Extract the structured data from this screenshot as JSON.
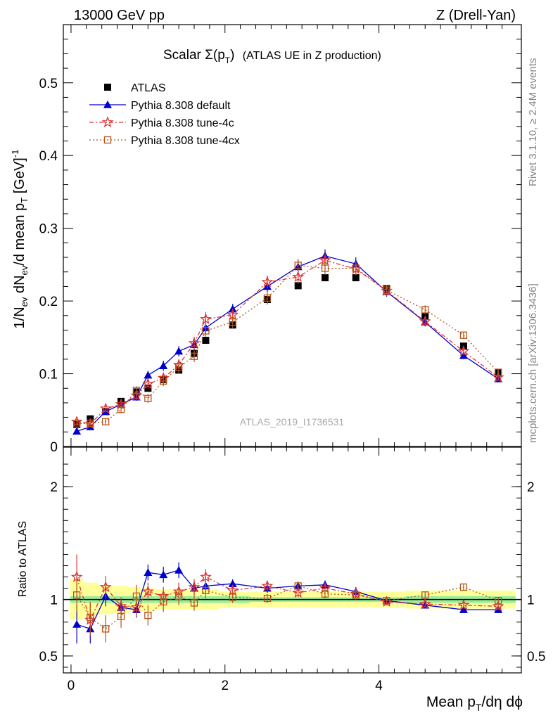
{
  "header": {
    "left": "13000 GeV pp",
    "right": "Z (Drell-Yan)"
  },
  "side_labels": {
    "rivet": "Rivet 3.1.10, ≥ 2.4M events",
    "mcplots": "mcplots.cern.ch [arXiv:1306.3436]"
  },
  "watermark": "ATLAS_2019_I1736531",
  "chart_data": {
    "type": "scatter",
    "title_main": "Scalar Σ(p",
    "title_sub": "T",
    "title_close": ")",
    "title_suffix": "(ATLAS UE in Z production)",
    "xlabel": "Mean p_T/dη dϕ",
    "ylabel": "1/N_ev dN_ev/d mean p_T [GeV]^-1",
    "ratio_ylabel": "Ratio to ATLAS",
    "xlim": [
      -0.1,
      5.85
    ],
    "ylim": [
      0,
      0.58
    ],
    "ratio_ylim": [
      0.35,
      2.35
    ],
    "x_ticks": [
      "0",
      "2",
      "4"
    ],
    "y_ticks": [
      "0",
      "0.1",
      "0.2",
      "0.3",
      "0.4",
      "0.5"
    ],
    "ratio_ticks": [
      "0.5",
      "1",
      "2"
    ],
    "x": [
      0.075,
      0.25,
      0.45,
      0.65,
      0.85,
      1.0,
      1.2,
      1.4,
      1.6,
      1.75,
      2.1,
      2.55,
      2.95,
      3.3,
      3.7,
      4.1,
      4.6,
      5.1,
      5.55
    ],
    "data": {
      "name": "ATLAS",
      "color": "#000000",
      "values": [
        0.03,
        0.038,
        0.048,
        0.062,
        0.075,
        0.08,
        0.092,
        0.105,
        0.128,
        0.146,
        0.167,
        0.202,
        0.221,
        0.232,
        0.232,
        0.217,
        0.179,
        0.138,
        0.101
      ],
      "ratio_stat": [
        0.03,
        0.03,
        0.03,
        0.03,
        0.03,
        0.03,
        0.03,
        0.03,
        0.03,
        0.03,
        0.03,
        0.02,
        0.02,
        0.02,
        0.02,
        0.02,
        0.03,
        0.03,
        0.03
      ],
      "ratio_tot": [
        0.18,
        0.15,
        0.13,
        0.12,
        0.11,
        0.1,
        0.09,
        0.09,
        0.09,
        0.09,
        0.07,
        0.07,
        0.07,
        0.07,
        0.07,
        0.07,
        0.08,
        0.08,
        0.08
      ]
    },
    "series": [
      {
        "name": "Pythia 8.308 default",
        "color": "#0000cc",
        "marker": "triangle",
        "dash": "",
        "values": [
          0.021,
          0.027,
          0.048,
          0.058,
          0.068,
          0.098,
          0.111,
          0.131,
          0.14,
          0.163,
          0.189,
          0.22,
          0.247,
          0.262,
          0.251,
          0.213,
          0.171,
          0.125,
          0.093
        ],
        "errors": [
          0.003,
          0.003,
          0.004,
          0.004,
          0.005,
          0.006,
          0.007,
          0.007,
          0.008,
          0.009,
          0.007,
          0.008,
          0.009,
          0.009,
          0.009,
          0.007,
          0.006,
          0.005,
          0.004
        ],
        "ratio": [
          0.78,
          0.74,
          1.03,
          0.93,
          0.91,
          1.24,
          1.22,
          1.26,
          1.1,
          1.12,
          1.14,
          1.1,
          1.12,
          1.13,
          1.07,
          0.99,
          0.95,
          0.91,
          0.91
        ],
        "ratio_err": [
          0.17,
          0.13,
          0.09,
          0.07,
          0.07,
          0.07,
          0.07,
          0.07,
          0.06,
          0.06,
          0.04,
          0.04,
          0.04,
          0.04,
          0.04,
          0.03,
          0.03,
          0.03,
          0.03
        ]
      },
      {
        "name": "Pythia 8.308 tune-4c",
        "color": "#dd3333",
        "marker": "star",
        "dash": "6,3,2,3",
        "values": [
          0.034,
          0.031,
          0.052,
          0.058,
          0.07,
          0.086,
          0.094,
          0.112,
          0.142,
          0.175,
          0.181,
          0.226,
          0.233,
          0.256,
          0.244,
          0.214,
          0.172,
          0.131,
          0.095
        ],
        "errors": [
          0.004,
          0.004,
          0.005,
          0.005,
          0.006,
          0.007,
          0.007,
          0.008,
          0.009,
          0.01,
          0.008,
          0.009,
          0.009,
          0.009,
          0.009,
          0.007,
          0.006,
          0.005,
          0.004
        ],
        "ratio": [
          1.2,
          0.82,
          1.11,
          0.94,
          0.93,
          1.07,
          1.03,
          1.07,
          1.11,
          1.2,
          1.08,
          1.12,
          1.06,
          1.1,
          1.05,
          0.98,
          0.96,
          0.95,
          0.94
        ],
        "ratio_err": [
          0.2,
          0.14,
          0.1,
          0.08,
          0.08,
          0.08,
          0.08,
          0.08,
          0.07,
          0.07,
          0.05,
          0.04,
          0.04,
          0.04,
          0.04,
          0.03,
          0.03,
          0.03,
          0.03
        ]
      },
      {
        "name": "Pythia 8.308 tune-4cx",
        "color": "#b5541a",
        "marker": "square-open",
        "dash": "2,3",
        "values": [
          0.031,
          0.032,
          0.034,
          0.051,
          0.077,
          0.066,
          0.09,
          0.109,
          0.124,
          0.159,
          0.171,
          0.204,
          0.249,
          0.245,
          0.245,
          0.215,
          0.188,
          0.153,
          0.102
        ],
        "errors": [
          0.004,
          0.004,
          0.004,
          0.005,
          0.006,
          0.006,
          0.007,
          0.008,
          0.008,
          0.009,
          0.008,
          0.009,
          0.009,
          0.009,
          0.009,
          0.007,
          0.006,
          0.005,
          0.004
        ],
        "ratio": [
          1.04,
          0.84,
          0.74,
          0.85,
          1.03,
          0.86,
          0.98,
          1.03,
          0.97,
          1.08,
          1.02,
          1.01,
          1.12,
          1.05,
          1.04,
          0.99,
          1.04,
          1.11,
          0.99
        ],
        "ratio_err": [
          0.15,
          0.14,
          0.12,
          0.1,
          0.1,
          0.09,
          0.09,
          0.08,
          0.07,
          0.07,
          0.05,
          0.04,
          0.04,
          0.04,
          0.04,
          0.03,
          0.03,
          0.03,
          0.03
        ]
      }
    ]
  }
}
